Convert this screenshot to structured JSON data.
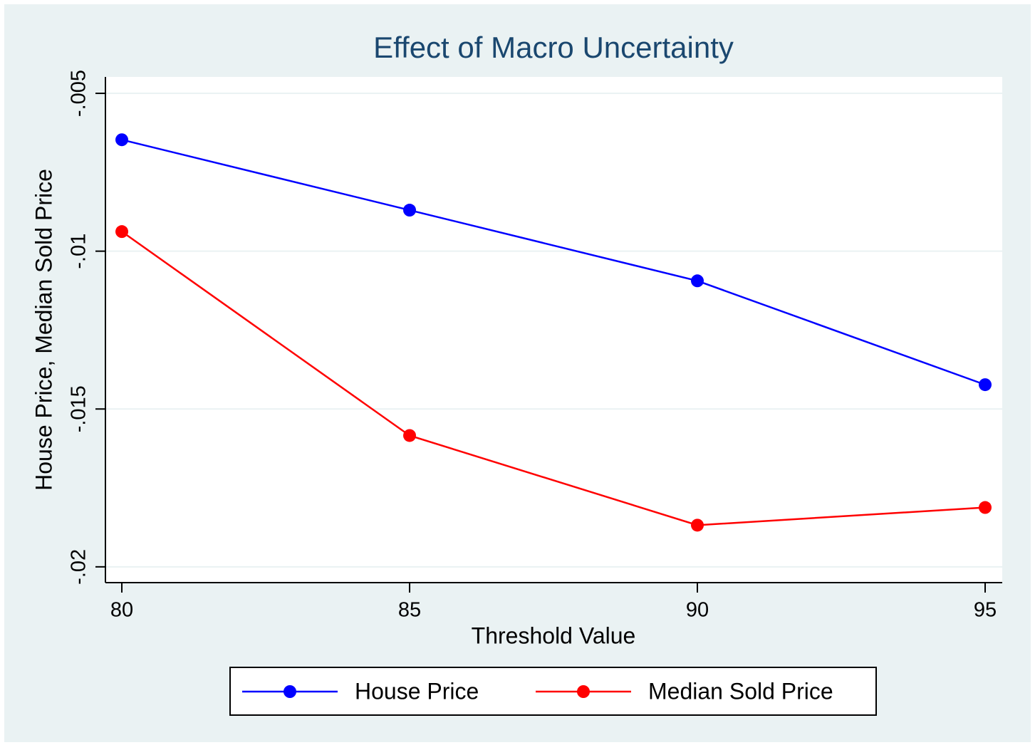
{
  "chart_data": {
    "type": "line",
    "title": "Effect of Macro Uncertainty",
    "x_label": "Threshold Value",
    "y_label": "House Price, Median Sold Price",
    "x": [
      80,
      85,
      90,
      95
    ],
    "series": [
      {
        "name": "House Price",
        "color": "#0000ff",
        "values": [
          -0.00647,
          -0.0087,
          -0.01094,
          -0.01423
        ]
      },
      {
        "name": "Median Sold Price",
        "color": "#ff0000",
        "values": [
          -0.00938,
          -0.01584,
          -0.01868,
          -0.01812
        ]
      }
    ],
    "xlim": [
      79.715,
      95.297
    ],
    "xticks": [
      80,
      85,
      90,
      95
    ],
    "ylim": [
      -0.0205,
      -0.00448
    ],
    "yticks": [
      {
        "value": -0.02,
        "label": "-.02"
      },
      {
        "value": -0.015,
        "label": "-.015"
      },
      {
        "value": -0.01,
        "label": "-.01"
      },
      {
        "value": -0.005,
        "label": "-.005"
      }
    ],
    "grid": true,
    "legend": "bottom"
  }
}
